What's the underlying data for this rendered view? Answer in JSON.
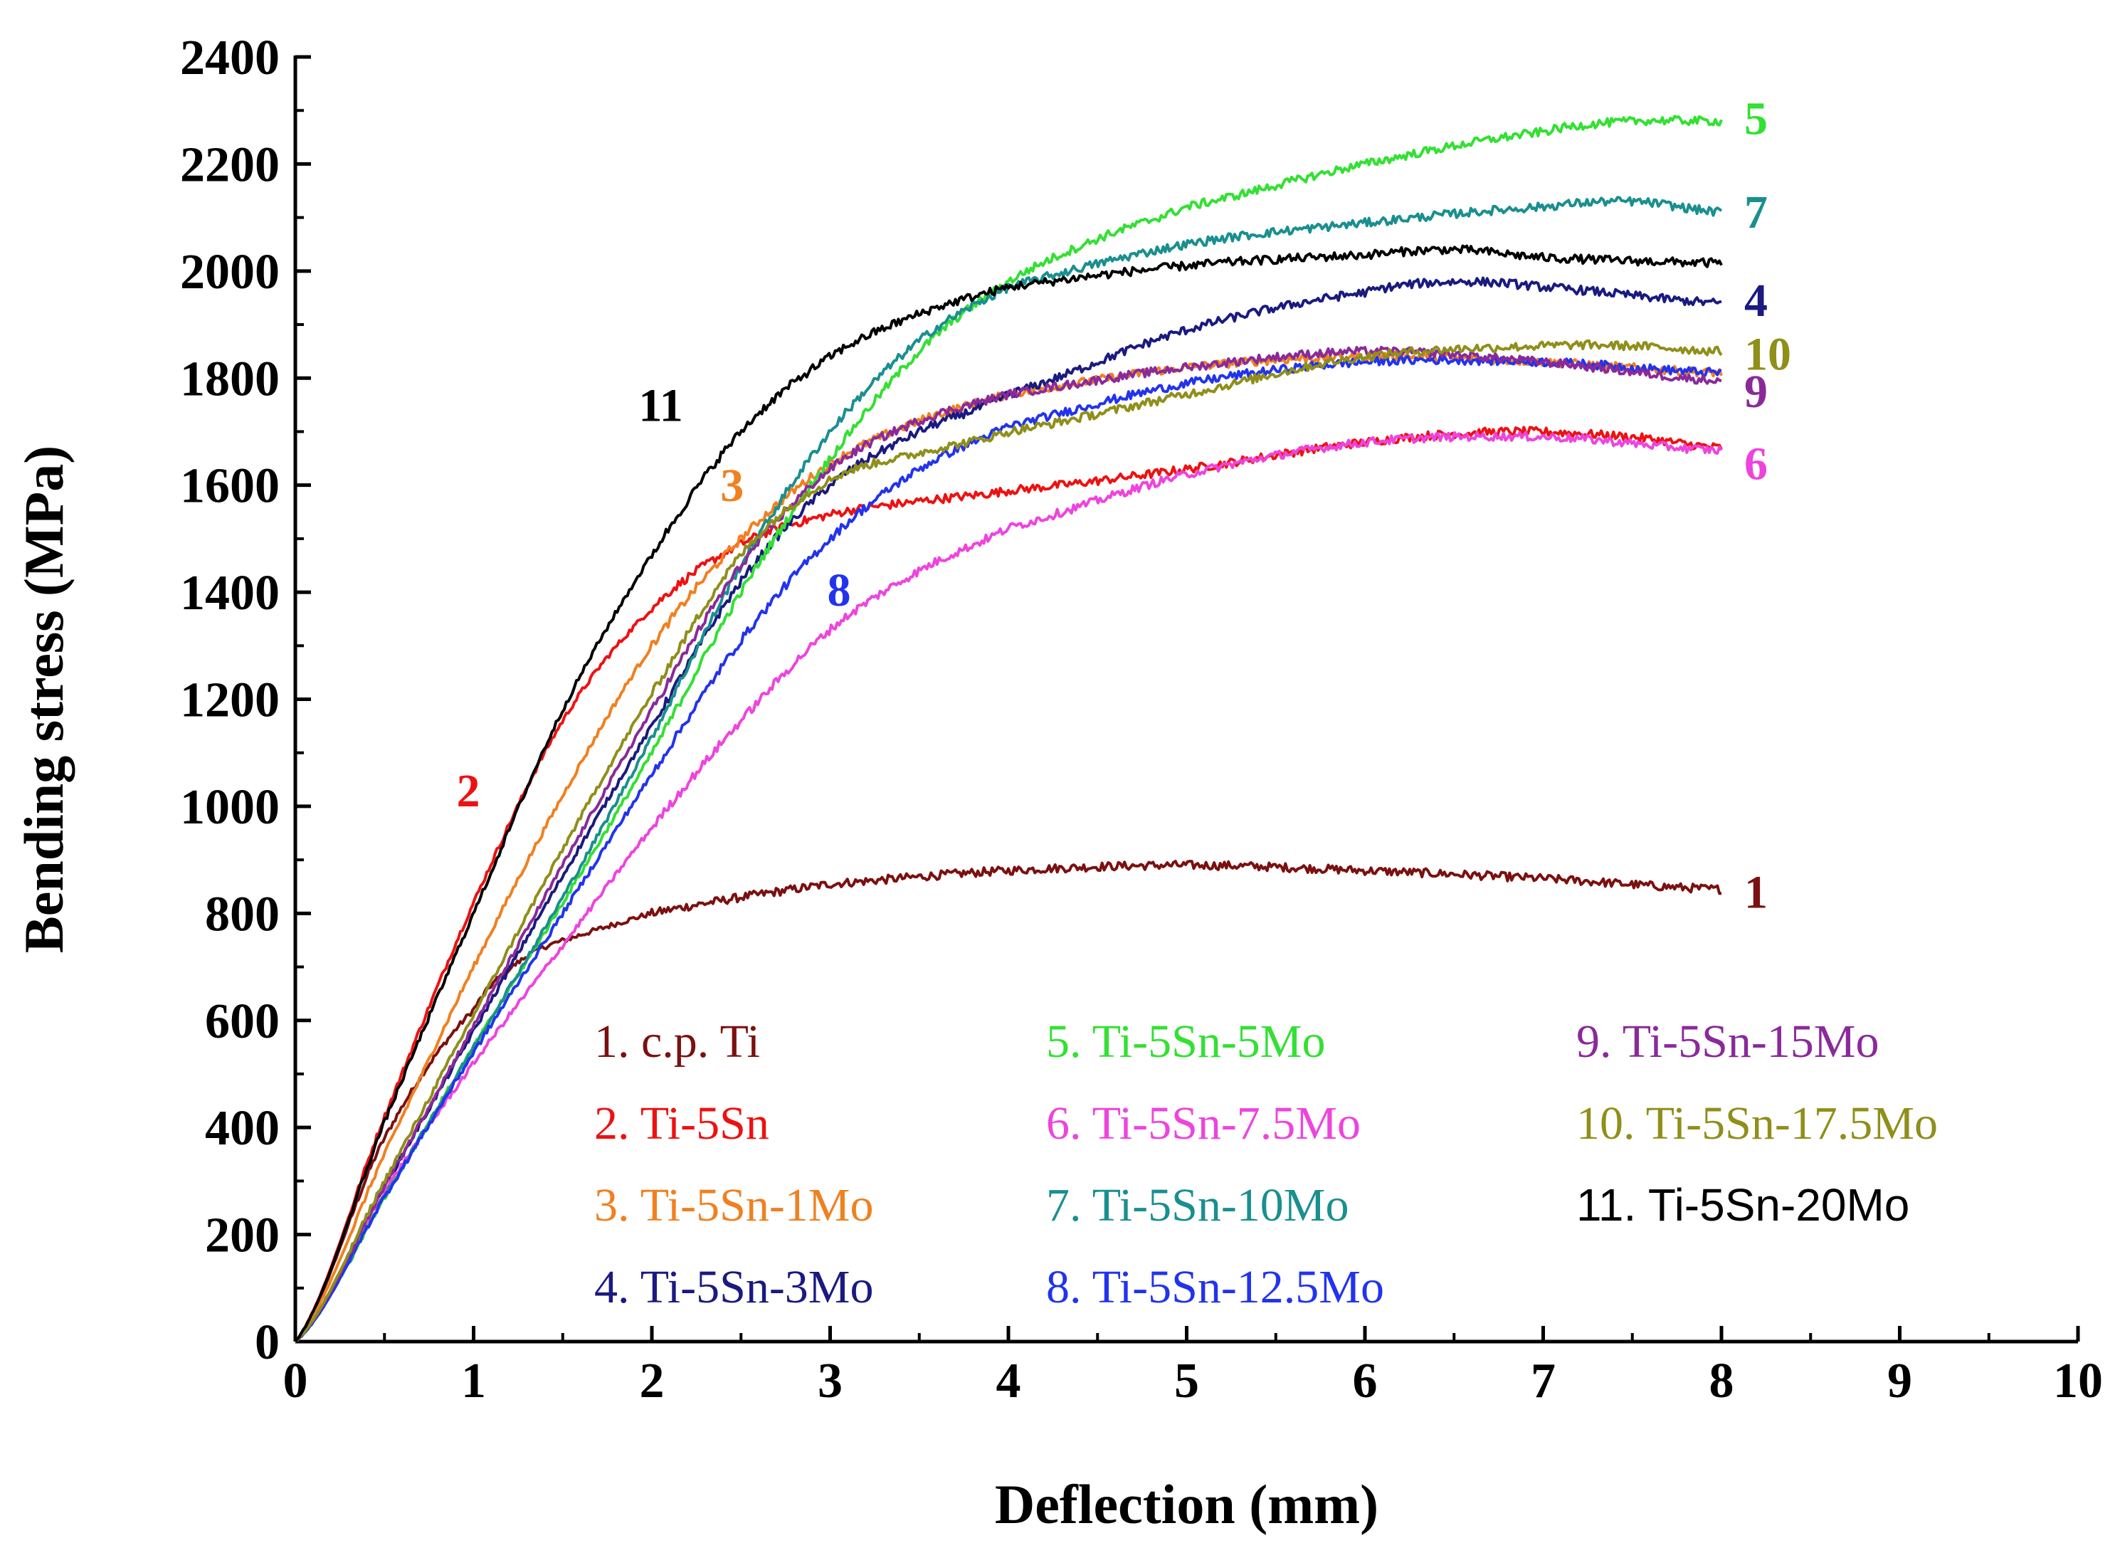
{
  "chart_data": {
    "type": "line",
    "title": "",
    "xlabel": "Deflection (mm)",
    "ylabel": "Bending stress (MPa)",
    "xlim": [
      0,
      10
    ],
    "ylim": [
      0,
      2400
    ],
    "xticks": [
      "0",
      "1",
      "2",
      "3",
      "4",
      "5",
      "6",
      "7",
      "8",
      "9",
      "10"
    ],
    "yticks": [
      "0",
      "200",
      "400",
      "600",
      "800",
      "1000",
      "1200",
      "1400",
      "1600",
      "1800",
      "2000",
      "2200",
      "2400"
    ],
    "grid": false,
    "series": [
      {
        "name": "1. c.p. Ti",
        "label": "1",
        "color": "#7b1010",
        "x": [
          0,
          0.5,
          1,
          1.3,
          1.6,
          2,
          2.5,
          3,
          4,
          5,
          6,
          7,
          8
        ],
        "y": [
          0,
          380,
          620,
          720,
          760,
          800,
          830,
          855,
          880,
          890,
          880,
          865,
          845
        ]
      },
      {
        "name": "2. Ti-5Sn",
        "label": "2",
        "color": "#ee1111",
        "x": [
          0,
          0.5,
          1,
          1.5,
          2,
          2.5,
          3,
          3.5,
          4,
          5,
          6,
          6.8,
          7.5,
          8
        ],
        "y": [
          0,
          420,
          820,
          1160,
          1370,
          1490,
          1545,
          1570,
          1590,
          1630,
          1680,
          1700,
          1690,
          1670
        ]
      },
      {
        "name": "3. Ti-5Sn-1Mo",
        "label": "3",
        "color": "#f08020",
        "x": [
          0,
          0.5,
          1,
          1.5,
          2,
          2.5,
          3,
          3.5,
          4,
          5,
          6,
          7,
          8
        ],
        "y": [
          0,
          350,
          700,
          1020,
          1300,
          1500,
          1640,
          1720,
          1770,
          1820,
          1840,
          1830,
          1810
        ]
      },
      {
        "name": "4. Ti-5Sn-3Mo",
        "label": "4",
        "color": "#1a1a80",
        "x": [
          0,
          0.5,
          1,
          1.5,
          2,
          2.5,
          3,
          3.5,
          4,
          5,
          6,
          6.5,
          7,
          8
        ],
        "y": [
          0,
          290,
          580,
          870,
          1150,
          1420,
          1600,
          1700,
          1770,
          1890,
          1960,
          1980,
          1970,
          1940
        ]
      },
      {
        "name": "5. Ti-5Sn-5Mo",
        "label": "5",
        "color": "#33e033",
        "x": [
          0,
          0.5,
          1,
          1.5,
          2,
          2.5,
          3,
          3.5,
          4,
          4.5,
          5,
          6,
          7,
          7.5,
          8
        ],
        "y": [
          0,
          270,
          550,
          820,
          1100,
          1400,
          1650,
          1850,
          1980,
          2060,
          2120,
          2200,
          2260,
          2280,
          2280
        ]
      },
      {
        "name": "6. Ti-5Sn-7.5Mo",
        "label": "6",
        "color": "#ee44dd",
        "x": [
          0,
          0.5,
          1,
          1.5,
          2,
          2.5,
          3,
          3.5,
          4,
          5,
          6,
          7,
          8
        ],
        "y": [
          0,
          280,
          520,
          740,
          960,
          1160,
          1330,
          1440,
          1520,
          1620,
          1680,
          1690,
          1665
        ]
      },
      {
        "name": "7. Ti-5Sn-10Mo",
        "label": "7",
        "color": "#1a8f8f",
        "x": [
          0,
          0.5,
          1,
          1.5,
          2,
          2.5,
          3,
          3.5,
          4,
          5,
          6,
          7,
          7.5,
          8
        ],
        "y": [
          0,
          270,
          550,
          830,
          1130,
          1450,
          1700,
          1870,
          1970,
          2050,
          2090,
          2120,
          2130,
          2110
        ]
      },
      {
        "name": "8. Ti-5Sn-12.5Mo",
        "label": "8",
        "color": "#2233ee",
        "x": [
          0,
          0.5,
          1,
          1.5,
          2,
          2.5,
          3,
          3.5,
          4,
          5,
          6,
          7,
          8
        ],
        "y": [
          0,
          270,
          540,
          800,
          1060,
          1310,
          1500,
          1630,
          1710,
          1790,
          1830,
          1830,
          1810
        ]
      },
      {
        "name": "9. Ti-5Sn-15Mo",
        "label": "9",
        "color": "#8a2a9a",
        "x": [
          0,
          0.5,
          1,
          1.5,
          2,
          2.5,
          3,
          3.5,
          4,
          5,
          6,
          7,
          8
        ],
        "y": [
          0,
          290,
          590,
          890,
          1180,
          1450,
          1630,
          1720,
          1770,
          1820,
          1850,
          1830,
          1795
        ]
      },
      {
        "name": "10. Ti-5Sn-17.5Mo",
        "label": "10",
        "color": "#8f8f1a",
        "x": [
          0,
          0.5,
          1,
          1.5,
          2,
          2.5,
          3,
          3.5,
          4,
          5,
          6,
          7,
          7.5,
          8
        ],
        "y": [
          0,
          300,
          610,
          920,
          1210,
          1470,
          1610,
          1660,
          1700,
          1770,
          1840,
          1860,
          1860,
          1850
        ]
      },
      {
        "name": "11. Ti-5Sn-20Mo",
        "label": "11",
        "color": "#000000",
        "x": [
          0,
          0.5,
          1,
          1.5,
          2,
          2.5,
          3,
          3.5,
          4,
          5,
          6,
          6.5,
          7,
          8
        ],
        "y": [
          0,
          410,
          800,
          1180,
          1470,
          1700,
          1840,
          1920,
          1970,
          2010,
          2030,
          2040,
          2025,
          2015
        ]
      }
    ],
    "end_labels": [
      {
        "text": "5",
        "series": 4,
        "y": 2285
      },
      {
        "text": "7",
        "series": 6,
        "y": 2110
      },
      {
        "text": "4",
        "series": 3,
        "y": 1945
      },
      {
        "text": "10",
        "series": 9,
        "y": 1845
      },
      {
        "text": "9",
        "series": 8,
        "y": 1775
      },
      {
        "text": "6",
        "series": 5,
        "y": 1640
      },
      {
        "text": "1",
        "series": 0,
        "y": 840
      }
    ],
    "inline_labels": [
      {
        "text": "11",
        "series": 10,
        "x": 2.05,
        "y": 1720
      },
      {
        "text": "3",
        "series": 2,
        "x": 2.45,
        "y": 1570
      },
      {
        "text": "2",
        "series": 1,
        "x": 0.97,
        "y": 1000
      },
      {
        "text": "8",
        "series": 7,
        "x": 3.05,
        "y": 1375
      }
    ]
  }
}
